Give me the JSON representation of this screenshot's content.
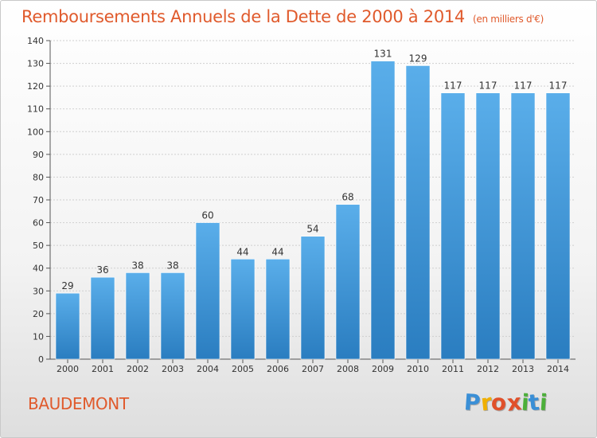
{
  "chart_data": {
    "type": "bar",
    "title": "Remboursements Annuels de la Dette de 2000 à 2014",
    "subtitle": "(en milliers d'€)",
    "categories": [
      "2000",
      "2001",
      "2002",
      "2003",
      "2004",
      "2005",
      "2006",
      "2007",
      "2008",
      "2009",
      "2010",
      "2011",
      "2012",
      "2013",
      "2014"
    ],
    "values": [
      29,
      36,
      38,
      38,
      60,
      44,
      44,
      54,
      68,
      131,
      129,
      117,
      117,
      117,
      117
    ],
    "ylim": [
      0,
      140
    ],
    "yticks": [
      0,
      10,
      20,
      30,
      40,
      50,
      60,
      70,
      80,
      90,
      100,
      110,
      120,
      130,
      140
    ],
    "xlabel": "",
    "ylabel": "",
    "grid": true,
    "bar_color": "#3f95d8",
    "bar_color_light": "#5aaeea",
    "bar_color_dark": "#2a7dc0"
  },
  "commune": "BAUDEMONT",
  "brand": {
    "letters": [
      "P",
      "r",
      "o",
      "x",
      "i",
      "t",
      "i"
    ],
    "colors": [
      "#3a8fd6",
      "#f0b000",
      "#e0502a",
      "#e0502a",
      "#4caf3a",
      "#3a8fd6",
      "#4caf3a"
    ]
  },
  "colors": {
    "title": "#e05a2c",
    "axis": "#555555",
    "grid": "#cfcfcf"
  }
}
